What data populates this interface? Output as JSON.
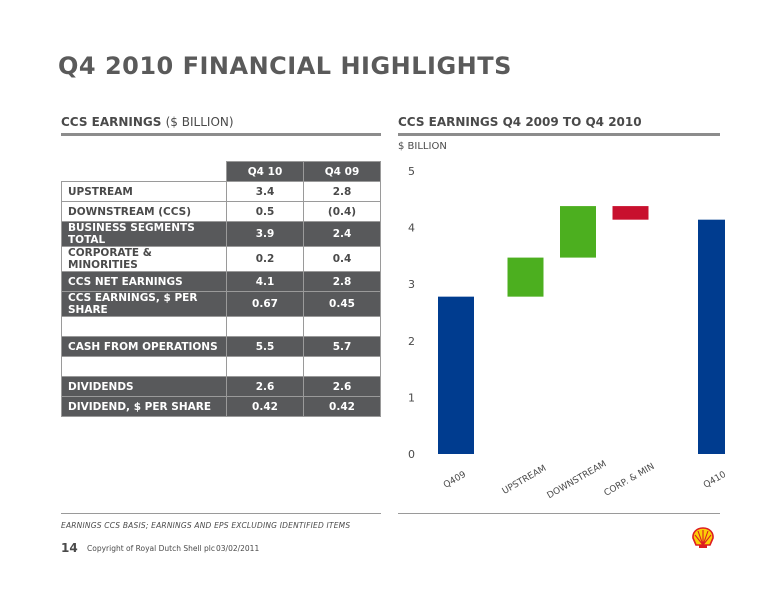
{
  "title": "Q4 2010 FINANCIAL HIGHLIGHTS",
  "left_section": {
    "title": "CCS EARNINGS",
    "unit": "($ BILLION)"
  },
  "right_section": {
    "title": "CCS EARNINGS Q4 2009 TO Q4 2010"
  },
  "table": {
    "headers": [
      "Q4 10",
      "Q4 09"
    ],
    "rows": [
      {
        "label": "UPSTREAM",
        "q410": "3.4",
        "q409": "2.8",
        "style": "light"
      },
      {
        "label": "DOWNSTREAM (CCS)",
        "q410": "0.5",
        "q409": "(0.4)",
        "style": "light"
      },
      {
        "label": "BUSINESS SEGMENTS TOTAL",
        "q410": "3.9",
        "q409": "2.4",
        "style": "dark"
      },
      {
        "label": "CORPORATE & MINORITIES",
        "q410": "0.2",
        "q409": "0.4",
        "style": "light"
      },
      {
        "label": "CCS NET EARNINGS",
        "q410": "4.1",
        "q409": "2.8",
        "style": "dark"
      },
      {
        "label": "CCS EARNINGS, $ PER SHARE",
        "q410": "0.67",
        "q409": "0.45",
        "style": "dark"
      },
      {
        "label": "",
        "q410": "",
        "q409": "",
        "style": "blank"
      },
      {
        "label": "CASH FROM OPERATIONS",
        "q410": "5.5",
        "q409": "5.7",
        "style": "dark"
      },
      {
        "label": "",
        "q410": "",
        "q409": "",
        "style": "blank"
      },
      {
        "label": "DIVIDENDS",
        "q410": "2.6",
        "q409": "2.6",
        "style": "dark"
      },
      {
        "label": "DIVIDEND, $ PER SHARE",
        "q410": "0.42",
        "q409": "0.42",
        "style": "dark"
      }
    ]
  },
  "chart_data": {
    "type": "bar",
    "subtype": "waterfall",
    "ylabel": "$ BILLION",
    "ylim": [
      0,
      5
    ],
    "yticks": [
      "0",
      "1",
      "2",
      "3",
      "4",
      "5"
    ],
    "categories": [
      "Q409",
      "UPSTREAM",
      "DOWNSTREAM",
      "CORP. & MIN",
      "Q410"
    ],
    "bars": [
      {
        "category": "Q409",
        "start": 0,
        "end": 2.78,
        "color": "#003c8f"
      },
      {
        "category": "UPSTREAM",
        "start": 2.78,
        "end": 3.47,
        "color": "#4caf1f"
      },
      {
        "category": "DOWNSTREAM",
        "start": 3.47,
        "end": 4.38,
        "color": "#4caf1f"
      },
      {
        "category": "CORP. & MIN",
        "start": 4.38,
        "end": 4.14,
        "color": "#c8102e"
      },
      {
        "category": "Q410",
        "start": 0,
        "end": 4.14,
        "color": "#003c8f"
      }
    ],
    "grid": false
  },
  "footer": {
    "footnote": "EARNINGS CCS BASIS; EARNINGS AND EPS EXCLUDING IDENTIFIED ITEMS",
    "page_number": "14",
    "copyright": "Copyright of Royal Dutch Shell plc",
    "date": "03/02/2011"
  },
  "logo": {
    "icon": "shell-logo-icon",
    "colors": {
      "red": "#dd1d21",
      "yellow": "#fbce07"
    }
  }
}
